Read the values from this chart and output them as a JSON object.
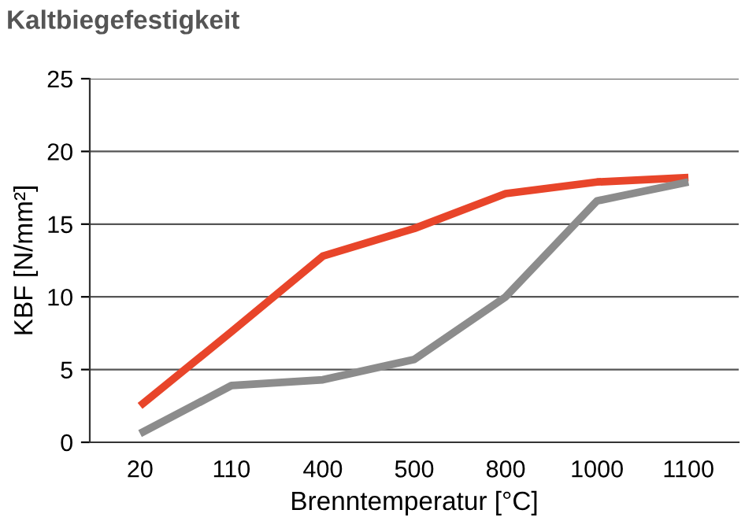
{
  "chart_data": {
    "type": "line",
    "title": "Kaltbiegefestigkeit",
    "xlabel": "Brenntemperatur [°C]",
    "ylabel": "KBF [N/mm²]",
    "categories": [
      "20",
      "110",
      "400",
      "500",
      "800",
      "1000",
      "1100"
    ],
    "series": [
      {
        "color": "#e8452a",
        "values": [
          2.5,
          7.6,
          12.8,
          14.7,
          17.1,
          17.9,
          18.2
        ]
      },
      {
        "color": "#8c8c8c",
        "values": [
          0.6,
          3.9,
          4.3,
          5.7,
          10.0,
          16.6,
          17.9
        ]
      }
    ],
    "ylim": [
      0,
      25
    ],
    "yticks": [
      0,
      5,
      10,
      15,
      20,
      25
    ],
    "grid": "y",
    "legend": false,
    "marker": "none",
    "line_style": "solid"
  }
}
